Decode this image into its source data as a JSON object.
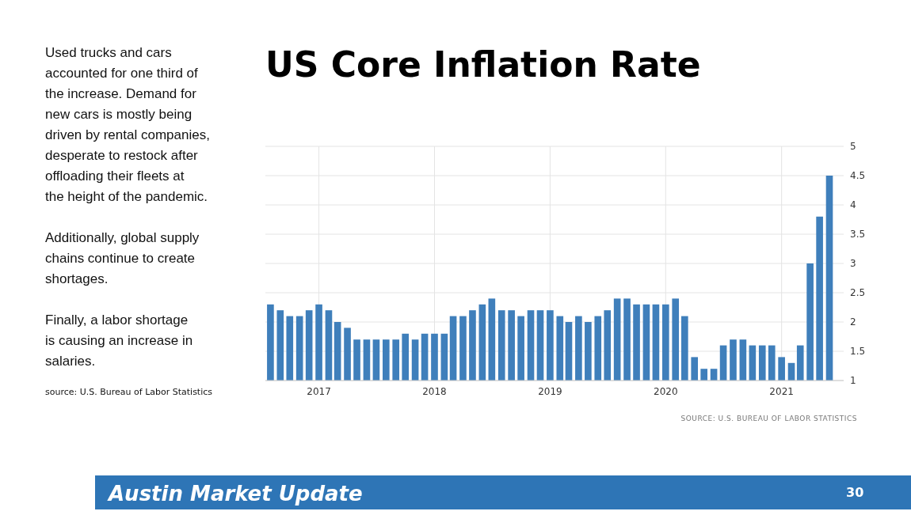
{
  "chart_data": {
    "type": "bar",
    "title": "US Core Inflation Rate",
    "x": [
      "2016-08",
      "2016-09",
      "2016-10",
      "2016-11",
      "2016-12",
      "2017-01",
      "2017-02",
      "2017-03",
      "2017-04",
      "2017-05",
      "2017-06",
      "2017-07",
      "2017-08",
      "2017-09",
      "2017-10",
      "2017-11",
      "2017-12",
      "2018-01",
      "2018-02",
      "2018-03",
      "2018-04",
      "2018-05",
      "2018-06",
      "2018-07",
      "2018-08",
      "2018-09",
      "2018-10",
      "2018-11",
      "2018-12",
      "2019-01",
      "2019-02",
      "2019-03",
      "2019-04",
      "2019-05",
      "2019-06",
      "2019-07",
      "2019-08",
      "2019-09",
      "2019-10",
      "2019-11",
      "2019-12",
      "2020-01",
      "2020-02",
      "2020-03",
      "2020-04",
      "2020-05",
      "2020-06",
      "2020-07",
      "2020-08",
      "2020-09",
      "2020-10",
      "2020-11",
      "2020-12",
      "2021-01",
      "2021-02",
      "2021-03",
      "2021-04",
      "2021-05",
      "2021-06"
    ],
    "values": [
      2.3,
      2.2,
      2.1,
      2.1,
      2.2,
      2.3,
      2.2,
      2.0,
      1.9,
      1.7,
      1.7,
      1.7,
      1.7,
      1.7,
      1.8,
      1.7,
      1.8,
      1.8,
      1.8,
      2.1,
      2.1,
      2.2,
      2.3,
      2.4,
      2.2,
      2.2,
      2.1,
      2.2,
      2.2,
      2.2,
      2.1,
      2.0,
      2.1,
      2.0,
      2.1,
      2.2,
      2.4,
      2.4,
      2.3,
      2.3,
      2.3,
      2.3,
      2.4,
      2.1,
      1.4,
      1.2,
      1.2,
      1.6,
      1.7,
      1.7,
      1.6,
      1.6,
      1.6,
      1.4,
      1.3,
      1.6,
      3.0,
      3.8,
      4.5
    ],
    "color": "#3f7fbb",
    "xlim": [
      "2016-07-16",
      "2021-07-16"
    ],
    "xticks": [
      {
        "value": "2017-01",
        "label": "2017"
      },
      {
        "value": "2018-01",
        "label": "2018"
      },
      {
        "value": "2019-01",
        "label": "2019"
      },
      {
        "value": "2020-01",
        "label": "2020"
      },
      {
        "value": "2021-01",
        "label": "2021"
      }
    ],
    "ylim": [
      1,
      5
    ],
    "yticks": [
      1,
      1.5,
      2,
      2.5,
      3,
      3.5,
      4,
      4.5,
      5
    ],
    "grid": true,
    "annotations": [
      "Used trucks and cars accounted for one third of the increase. Demand for new cars is mostly being driven by rental companies, desperate to restock after offloading their fleets at the height of the pandemic.",
      "Additionally, global supply chains continue to create shortages.",
      "Finally, a labor shortage is causing an increase in salaries.",
      "source: U.S. Bureau of Labor Statistics",
      "SOURCE: U.S. BUREAU OF LABOR STATISTICS",
      "Austin Market Update",
      "30"
    ]
  }
}
